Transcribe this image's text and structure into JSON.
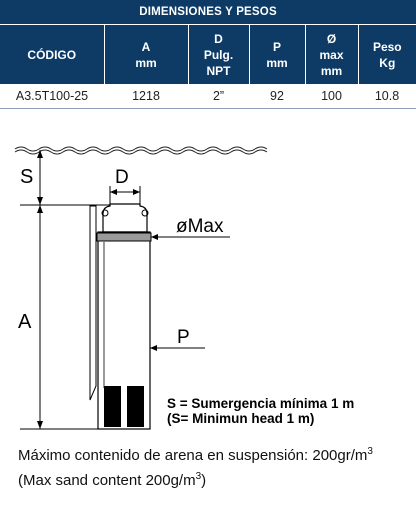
{
  "table": {
    "title": "DIMENSIONES Y PESOS",
    "columns": [
      {
        "line1": "CÓDIGO",
        "line2": "",
        "line3": ""
      },
      {
        "line1": "A",
        "line2": "mm",
        "line3": ""
      },
      {
        "line1": "D",
        "line2": "Pulg.",
        "line3": "NPT"
      },
      {
        "line1": "P",
        "line2": "mm",
        "line3": ""
      },
      {
        "line1": "Ø",
        "line2": "max",
        "line3": "mm"
      },
      {
        "line1": "Peso",
        "line2": "Kg",
        "line3": ""
      }
    ],
    "rows": [
      {
        "codigo": "A3.5T100-25",
        "a": "1218",
        "d": "2”",
        "p": "92",
        "max": "100",
        "peso": "10.8"
      }
    ]
  },
  "diagram": {
    "label_s": "S",
    "label_d": "D",
    "label_max": "øMax",
    "label_a": "A",
    "label_p": "P"
  },
  "notes": {
    "line1": "S = Sumergencia mínima  1 m",
    "line2": "(S= Minimun head 1 m)"
  },
  "footer": {
    "line1_text": "Máximo contenido de arena en suspensión: 200gr/m",
    "line1_sup": "3",
    "line2_text": "(Max sand content  200g/m",
    "line2_sup": "3",
    "line2_close": ")"
  },
  "colors": {
    "header_bg": "#0d3b66",
    "header_text": "#ffffff"
  }
}
